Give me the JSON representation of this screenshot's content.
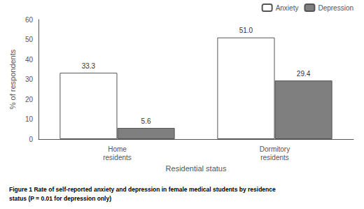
{
  "chart_data": {
    "type": "bar",
    "title": "Figure 1 Rate of self-reported anxiety and depression in female medical students by residence\nstatus (P = 0.01 for depression only)",
    "x_label": "Residential status",
    "y_label": "% of respondents",
    "categories": [
      "Home\nresidents",
      "Dormitory\nresidents"
    ],
    "series": [
      {
        "name": "Anxiety",
        "color": "#ffffff",
        "values": [
          33.3,
          51.0
        ],
        "value_labels": [
          "33.3",
          "51.0"
        ]
      },
      {
        "name": "Depression",
        "color": "#7f7f7f",
        "values": [
          5.6,
          29.4
        ]
      }
    ],
    "ylim": [
      0,
      60
    ],
    "yticks": [
      0,
      10,
      20,
      30,
      40,
      50,
      60
    ],
    "data_labels": true,
    "legend": "upper right",
    "grid": false
  }
}
